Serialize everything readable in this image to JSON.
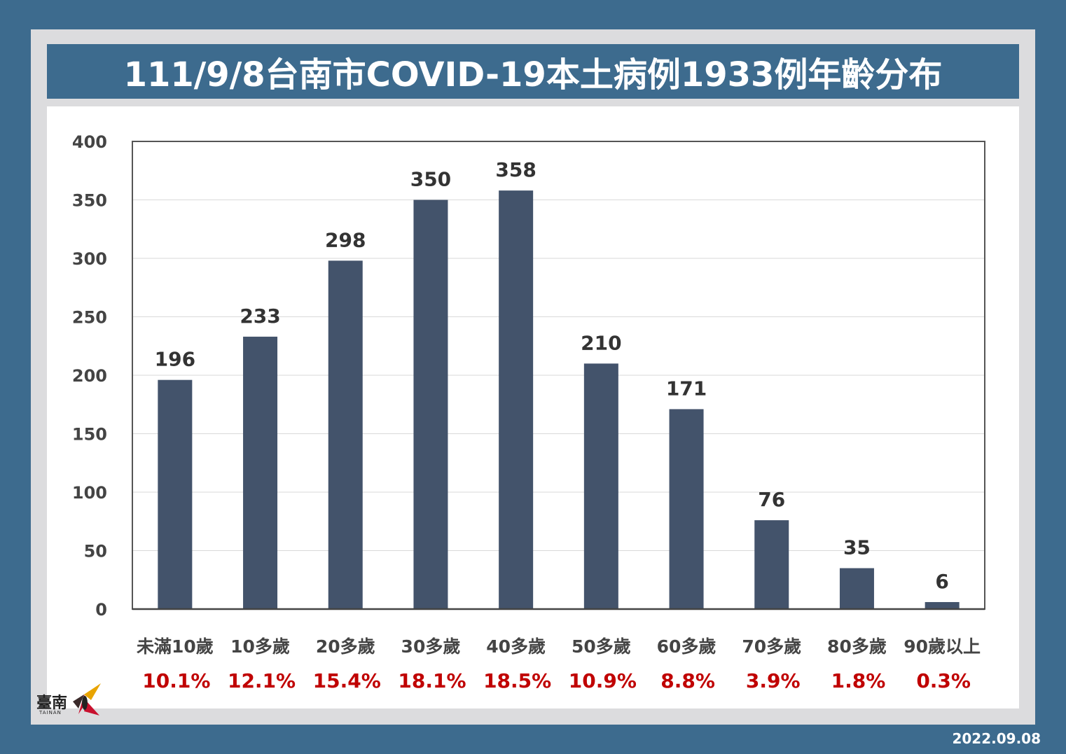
{
  "title": "111/9/8台南市COVID-19本土病例1933例年齡分布",
  "date": "2022.09.08",
  "logo": {
    "text": "臺南",
    "subtext": "TAINAN"
  },
  "colors": {
    "background": "#3d6b8e",
    "bar": "#43536b",
    "percent": "#c00000",
    "title_bg": "#3d6b8e"
  },
  "chart_data": {
    "type": "bar",
    "categories": [
      "未滿10歲",
      "10多歲",
      "20多歲",
      "30多歲",
      "40多歲",
      "50多歲",
      "60多歲",
      "70多歲",
      "80多歲",
      "90歲以上"
    ],
    "values": [
      196,
      233,
      298,
      350,
      358,
      210,
      171,
      76,
      35,
      6
    ],
    "value_labels": [
      "196",
      "233",
      "298",
      "350",
      "358",
      "210",
      "171",
      "76",
      "35",
      "6"
    ],
    "percentages": [
      "10.1%",
      "12.1%",
      "15.4%",
      "18.1%",
      "18.5%",
      "10.9%",
      "8.8%",
      "3.9%",
      "1.8%",
      "0.3%"
    ],
    "ylim": [
      0,
      400
    ],
    "yticks": [
      "0",
      "50",
      "100",
      "150",
      "200",
      "250",
      "300",
      "350",
      "400"
    ],
    "ytick_values": [
      0,
      50,
      100,
      150,
      200,
      250,
      300,
      350,
      400
    ],
    "grid": true
  }
}
